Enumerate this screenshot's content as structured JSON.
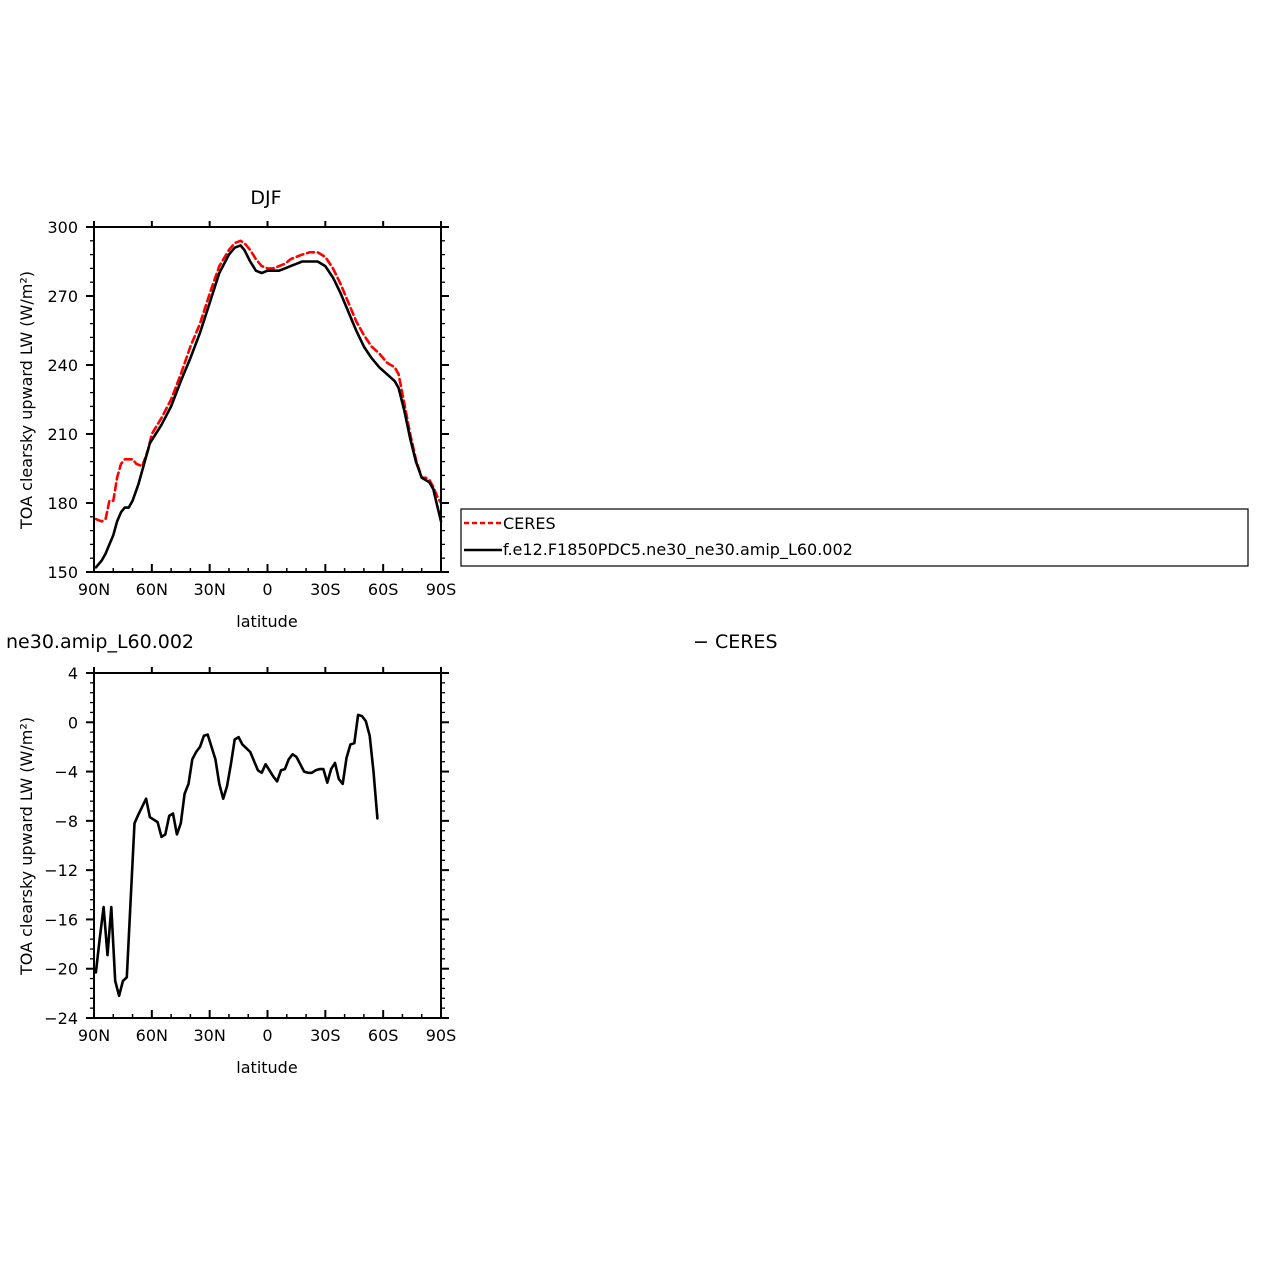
{
  "figure": {
    "top_title": "DJF",
    "bottom_title": "ne30.amip_L60.002",
    "bottom_annotation": "− CERES"
  },
  "legend": {
    "entries": [
      {
        "label": "CERES",
        "color": "#ff0000",
        "dash": "dashed"
      },
      {
        "label": "f.e12.F1850PDC5.ne30_ne30.amip_L60.002",
        "color": "#000000",
        "dash": "solid"
      }
    ]
  },
  "chart_data": [
    {
      "type": "line",
      "title": "DJF",
      "xlabel": "latitude",
      "ylabel": "TOA clearsky upward LW (W/m²)",
      "xlim": [
        90,
        -90
      ],
      "ylim": [
        150,
        300
      ],
      "xticks": [
        {
          "value": 90,
          "label": "90N"
        },
        {
          "value": 60,
          "label": "60N"
        },
        {
          "value": 30,
          "label": "30N"
        },
        {
          "value": 0,
          "label": "0"
        },
        {
          "value": -30,
          "label": "30S"
        },
        {
          "value": -60,
          "label": "60S"
        },
        {
          "value": -90,
          "label": "90S"
        }
      ],
      "yticks": [
        150,
        180,
        210,
        240,
        270,
        300
      ],
      "series": [
        {
          "name": "CERES",
          "color": "#ff0000",
          "dash": "dashed",
          "points": [
            [
              89,
              173
            ],
            [
              86,
              172
            ],
            [
              84,
              173
            ],
            [
              82,
              181
            ],
            [
              80,
              181
            ],
            [
              78,
              191
            ],
            [
              76,
              197
            ],
            [
              74,
              199
            ],
            [
              72,
              199
            ],
            [
              70,
              199
            ],
            [
              68,
              197
            ],
            [
              65,
              196
            ],
            [
              62,
              203
            ],
            [
              60,
              210
            ],
            [
              55,
              217
            ],
            [
              50,
              225
            ],
            [
              45,
              236
            ],
            [
              40,
              248
            ],
            [
              35,
              258
            ],
            [
              30,
              271
            ],
            [
              25,
              283
            ],
            [
              20,
              290
            ],
            [
              17,
              293
            ],
            [
              14,
              294
            ],
            [
              12,
              293
            ],
            [
              9,
              290
            ],
            [
              6,
              286
            ],
            [
              3,
              283
            ],
            [
              0,
              282
            ],
            [
              -3,
              282
            ],
            [
              -6,
              283
            ],
            [
              -9,
              284
            ],
            [
              -12,
              286
            ],
            [
              -15,
              287
            ],
            [
              -18,
              288
            ],
            [
              -22,
              289
            ],
            [
              -26,
              289
            ],
            [
              -30,
              287
            ],
            [
              -34,
              282
            ],
            [
              -38,
              275
            ],
            [
              -42,
              267
            ],
            [
              -46,
              259
            ],
            [
              -50,
              253
            ],
            [
              -54,
              248
            ],
            [
              -58,
              245
            ],
            [
              -62,
              241
            ],
            [
              -66,
              239
            ],
            [
              -68,
              236
            ],
            [
              -71,
              223
            ],
            [
              -74,
              210
            ],
            [
              -77,
              199
            ],
            [
              -80,
              191
            ],
            [
              -82,
              191
            ],
            [
              -84,
              190
            ],
            [
              -86,
              187
            ],
            [
              -88,
              183
            ],
            [
              -90,
              180
            ]
          ]
        },
        {
          "name": "f.e12.F1850PDC5.ne30_ne30.amip_L60.002",
          "color": "#000000",
          "dash": "solid",
          "points": [
            [
              89,
              152
            ],
            [
              86,
              155
            ],
            [
              84,
              158
            ],
            [
              82,
              162
            ],
            [
              80,
              166
            ],
            [
              78,
              172
            ],
            [
              76,
              176
            ],
            [
              74,
              178
            ],
            [
              72,
              178
            ],
            [
              70,
              181
            ],
            [
              67,
              188
            ],
            [
              64,
              197
            ],
            [
              61,
              206
            ],
            [
              58,
              210
            ],
            [
              55,
              214
            ],
            [
              50,
              222
            ],
            [
              45,
              233
            ],
            [
              40,
              243
            ],
            [
              35,
              254
            ],
            [
              30,
              267
            ],
            [
              25,
              280
            ],
            [
              20,
              288
            ],
            [
              17,
              291
            ],
            [
              14,
              292
            ],
            [
              12,
              290
            ],
            [
              9,
              285
            ],
            [
              6,
              281
            ],
            [
              3,
              280
            ],
            [
              0,
              281
            ],
            [
              -3,
              281
            ],
            [
              -6,
              281
            ],
            [
              -9,
              282
            ],
            [
              -12,
              283
            ],
            [
              -15,
              284
            ],
            [
              -18,
              285
            ],
            [
              -22,
              285
            ],
            [
              -26,
              285
            ],
            [
              -30,
              283
            ],
            [
              -34,
              278
            ],
            [
              -38,
              271
            ],
            [
              -42,
              263
            ],
            [
              -46,
              255
            ],
            [
              -50,
              248
            ],
            [
              -54,
              243
            ],
            [
              -58,
              239
            ],
            [
              -62,
              236
            ],
            [
              -66,
              233
            ],
            [
              -68,
              230
            ],
            [
              -71,
              220
            ],
            [
              -74,
              208
            ],
            [
              -77,
              198
            ],
            [
              -80,
              191
            ],
            [
              -82,
              190
            ],
            [
              -84,
              189
            ],
            [
              -86,
              186
            ],
            [
              -88,
              179
            ],
            [
              -90,
              172
            ]
          ]
        }
      ]
    },
    {
      "type": "line",
      "title": "ne30.amip_L60.002",
      "xlabel": "latitude",
      "ylabel": "TOA clearsky upward LW (W/m²)",
      "xlim": [
        90,
        -90
      ],
      "ylim": [
        -24,
        4
      ],
      "xticks": [
        {
          "value": 90,
          "label": "90N"
        },
        {
          "value": 60,
          "label": "60N"
        },
        {
          "value": 30,
          "label": "30N"
        },
        {
          "value": 0,
          "label": "0"
        },
        {
          "value": -30,
          "label": "30S"
        },
        {
          "value": -60,
          "label": "60S"
        },
        {
          "value": -90,
          "label": "90S"
        }
      ],
      "yticks": [
        -24,
        -20,
        -16,
        -12,
        -8,
        -4,
        0,
        4
      ],
      "series": [
        {
          "color": "#000000",
          "dash": "solid",
          "points": [
            [
              89,
              -20.3
            ],
            [
              87,
              -17.5
            ],
            [
              85,
              -15.0
            ],
            [
              83,
              -18.9
            ],
            [
              81,
              -15.0
            ],
            [
              79,
              -21.0
            ],
            [
              77,
              -22.2
            ],
            [
              75,
              -21.0
            ],
            [
              73,
              -20.7
            ],
            [
              71,
              -14.5
            ],
            [
              69,
              -8.2
            ],
            [
              67,
              -7.5
            ],
            [
              63,
              -6.2
            ],
            [
              61,
              -7.7
            ],
            [
              57,
              -8.1
            ],
            [
              55,
              -9.3
            ],
            [
              53,
              -9.1
            ],
            [
              51,
              -7.6
            ],
            [
              49,
              -7.4
            ],
            [
              47,
              -9.1
            ],
            [
              45,
              -8.2
            ],
            [
              43,
              -5.8
            ],
            [
              41,
              -5.0
            ],
            [
              39,
              -3.0
            ],
            [
              37,
              -2.4
            ],
            [
              35,
              -2.0
            ],
            [
              33,
              -1.1
            ],
            [
              31,
              -1.0
            ],
            [
              27,
              -3.0
            ],
            [
              25,
              -5.0
            ],
            [
              23,
              -6.2
            ],
            [
              21,
              -5.2
            ],
            [
              19,
              -3.4
            ],
            [
              17,
              -1.4
            ],
            [
              15,
              -1.2
            ],
            [
              13,
              -1.8
            ],
            [
              11,
              -2.1
            ],
            [
              9,
              -2.4
            ],
            [
              5,
              -3.9
            ],
            [
              3,
              -4.1
            ],
            [
              1,
              -3.4
            ],
            [
              -3,
              -4.4
            ],
            [
              -5,
              -4.8
            ],
            [
              -7,
              -3.9
            ],
            [
              -9,
              -3.8
            ],
            [
              -11,
              -3.0
            ],
            [
              -13,
              -2.6
            ],
            [
              -15,
              -2.8
            ],
            [
              -19,
              -4.0
            ],
            [
              -21,
              -4.1
            ],
            [
              -23,
              -4.1
            ],
            [
              -25,
              -3.9
            ],
            [
              -27,
              -3.8
            ],
            [
              -29,
              -3.8
            ],
            [
              -31,
              -4.9
            ],
            [
              -33,
              -3.8
            ],
            [
              -35,
              -3.3
            ],
            [
              -37,
              -4.6
            ],
            [
              -39,
              -5.0
            ],
            [
              -41,
              -2.9
            ],
            [
              -43,
              -1.8
            ],
            [
              -45,
              -1.7
            ],
            [
              -47,
              0.6
            ],
            [
              -49,
              0.5
            ],
            [
              -51,
              0.1
            ],
            [
              -53,
              -1.1
            ],
            [
              -55,
              -4.0
            ],
            [
              -57,
              -7.8
            ]
          ]
        }
      ]
    }
  ]
}
